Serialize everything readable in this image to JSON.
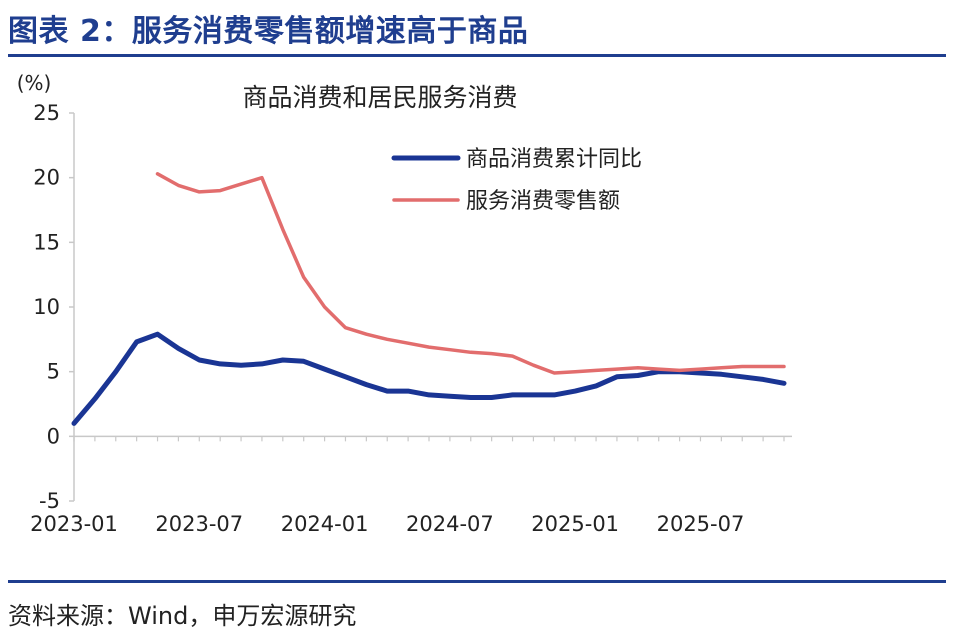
{
  "header": {
    "title": "图表 2：服务消费零售额增速高于商品"
  },
  "source": "资料来源：Wind，申万宏源研究",
  "colors": {
    "accent": "#1f3e8f",
    "series_goods": "#1a3594",
    "series_services": "#e26d6d",
    "axis": "#c8c8c8"
  },
  "chart_data": {
    "type": "line",
    "title": "商品消费和居民服务消费",
    "ylabel": "(%)",
    "ylim": [
      -5,
      25
    ],
    "yticks": [
      -5,
      0,
      5,
      10,
      15,
      20,
      25
    ],
    "xlim": [
      "2023-01",
      "2025-11"
    ],
    "xticks": [
      "2023-01",
      "2023-07",
      "2024-01",
      "2024-07",
      "2025-01",
      "2025-07"
    ],
    "legend_position": "upper-right",
    "series": [
      {
        "name": "商品消费累计同比",
        "x": [
          "2023-01",
          "2023-02",
          "2023-03",
          "2023-04",
          "2023-05",
          "2023-06",
          "2023-07",
          "2023-08",
          "2023-09",
          "2023-10",
          "2023-11",
          "2023-12",
          "2024-01",
          "2024-02",
          "2024-03",
          "2024-04",
          "2024-05",
          "2024-06",
          "2024-07",
          "2024-08",
          "2024-09",
          "2024-10",
          "2024-11",
          "2024-12",
          "2025-01",
          "2025-02",
          "2025-03",
          "2025-04",
          "2025-05",
          "2025-06",
          "2025-07",
          "2025-08",
          "2025-09",
          "2025-10",
          "2025-11"
        ],
        "values": [
          1.0,
          2.9,
          5.0,
          7.3,
          7.9,
          6.8,
          5.9,
          5.6,
          5.5,
          5.6,
          5.9,
          5.8,
          5.2,
          4.6,
          4.0,
          3.5,
          3.5,
          3.2,
          3.1,
          3.0,
          3.0,
          3.2,
          3.2,
          3.2,
          3.5,
          3.9,
          4.6,
          4.7,
          5.0,
          5.0,
          4.9,
          4.8,
          4.6,
          4.4,
          4.1
        ]
      },
      {
        "name": "服务消费零售额",
        "x": [
          "2023-05",
          "2023-06",
          "2023-07",
          "2023-08",
          "2023-09",
          "2023-10",
          "2023-11",
          "2023-12",
          "2024-01",
          "2024-02",
          "2024-03",
          "2024-04",
          "2024-05",
          "2024-06",
          "2024-07",
          "2024-08",
          "2024-09",
          "2024-10",
          "2024-11",
          "2024-12",
          "2025-01",
          "2025-02",
          "2025-03",
          "2025-04",
          "2025-05",
          "2025-06",
          "2025-07",
          "2025-08",
          "2025-09",
          "2025-10",
          "2025-11"
        ],
        "values": [
          20.3,
          19.4,
          18.9,
          19.0,
          19.5,
          20.0,
          16.0,
          12.3,
          10.0,
          8.4,
          7.9,
          7.5,
          7.2,
          6.9,
          6.7,
          6.5,
          6.4,
          6.2,
          5.5,
          4.9,
          5.0,
          5.1,
          5.2,
          5.3,
          5.2,
          5.1,
          5.2,
          5.3,
          5.4,
          5.4,
          5.4
        ]
      }
    ]
  }
}
